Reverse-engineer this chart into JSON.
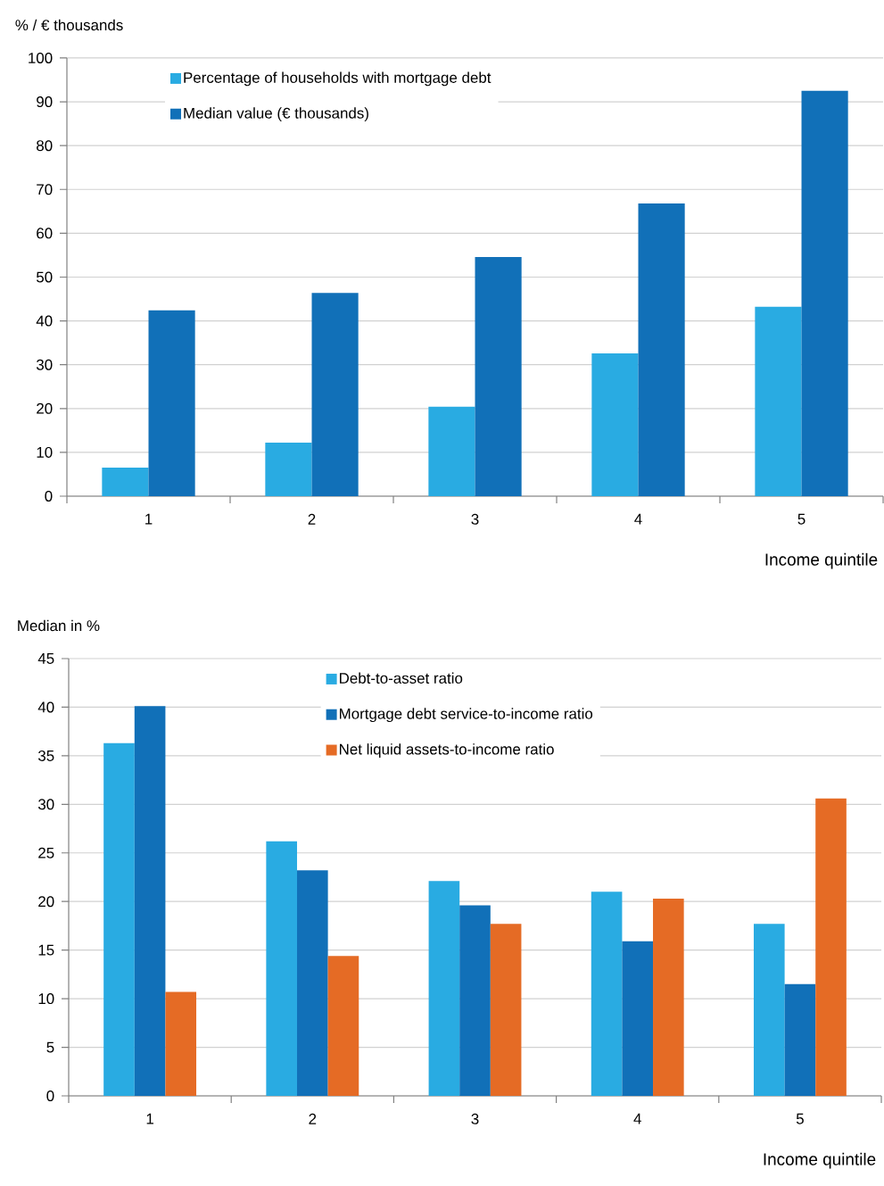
{
  "chart_data": [
    {
      "type": "bar",
      "ylabel": "% / € thousands",
      "xlabel": "Income quintile",
      "categories": [
        "1",
        "2",
        "3",
        "4",
        "5"
      ],
      "series": [
        {
          "name": "Percentage of households with mortgage debt",
          "color": "#29abe2",
          "values": [
            6.5,
            12.2,
            20.4,
            32.6,
            43.2
          ]
        },
        {
          "name": "Median value  (€ thousands)",
          "color": "#1170b8",
          "values": [
            42.4,
            46.4,
            54.6,
            66.8,
            92.5
          ]
        }
      ],
      "ylim": [
        0,
        100
      ],
      "yticks": [
        0,
        10,
        20,
        30,
        40,
        50,
        60,
        70,
        80,
        90,
        100
      ],
      "grid": "y",
      "legend": "top"
    },
    {
      "type": "bar",
      "ylabel": "Median in %",
      "xlabel": "Income quintile",
      "categories": [
        "1",
        "2",
        "3",
        "4",
        "5"
      ],
      "series": [
        {
          "name": "Debt-to-asset ratio",
          "color": "#29abe2",
          "values": [
            36.3,
            26.2,
            22.1,
            21.0,
            17.7
          ]
        },
        {
          "name": "Mortgage debt service-to-income ratio",
          "color": "#1170b8",
          "values": [
            40.1,
            23.2,
            19.6,
            15.9,
            11.5
          ]
        },
        {
          "name": "Net liquid assets-to-income ratio",
          "color": "#e56b25",
          "values": [
            10.7,
            14.4,
            17.7,
            20.3,
            30.6
          ]
        }
      ],
      "ylim": [
        0,
        45
      ],
      "yticks": [
        0,
        5,
        10,
        15,
        20,
        25,
        30,
        35,
        40,
        45
      ],
      "grid": "y",
      "legend": "top"
    }
  ]
}
